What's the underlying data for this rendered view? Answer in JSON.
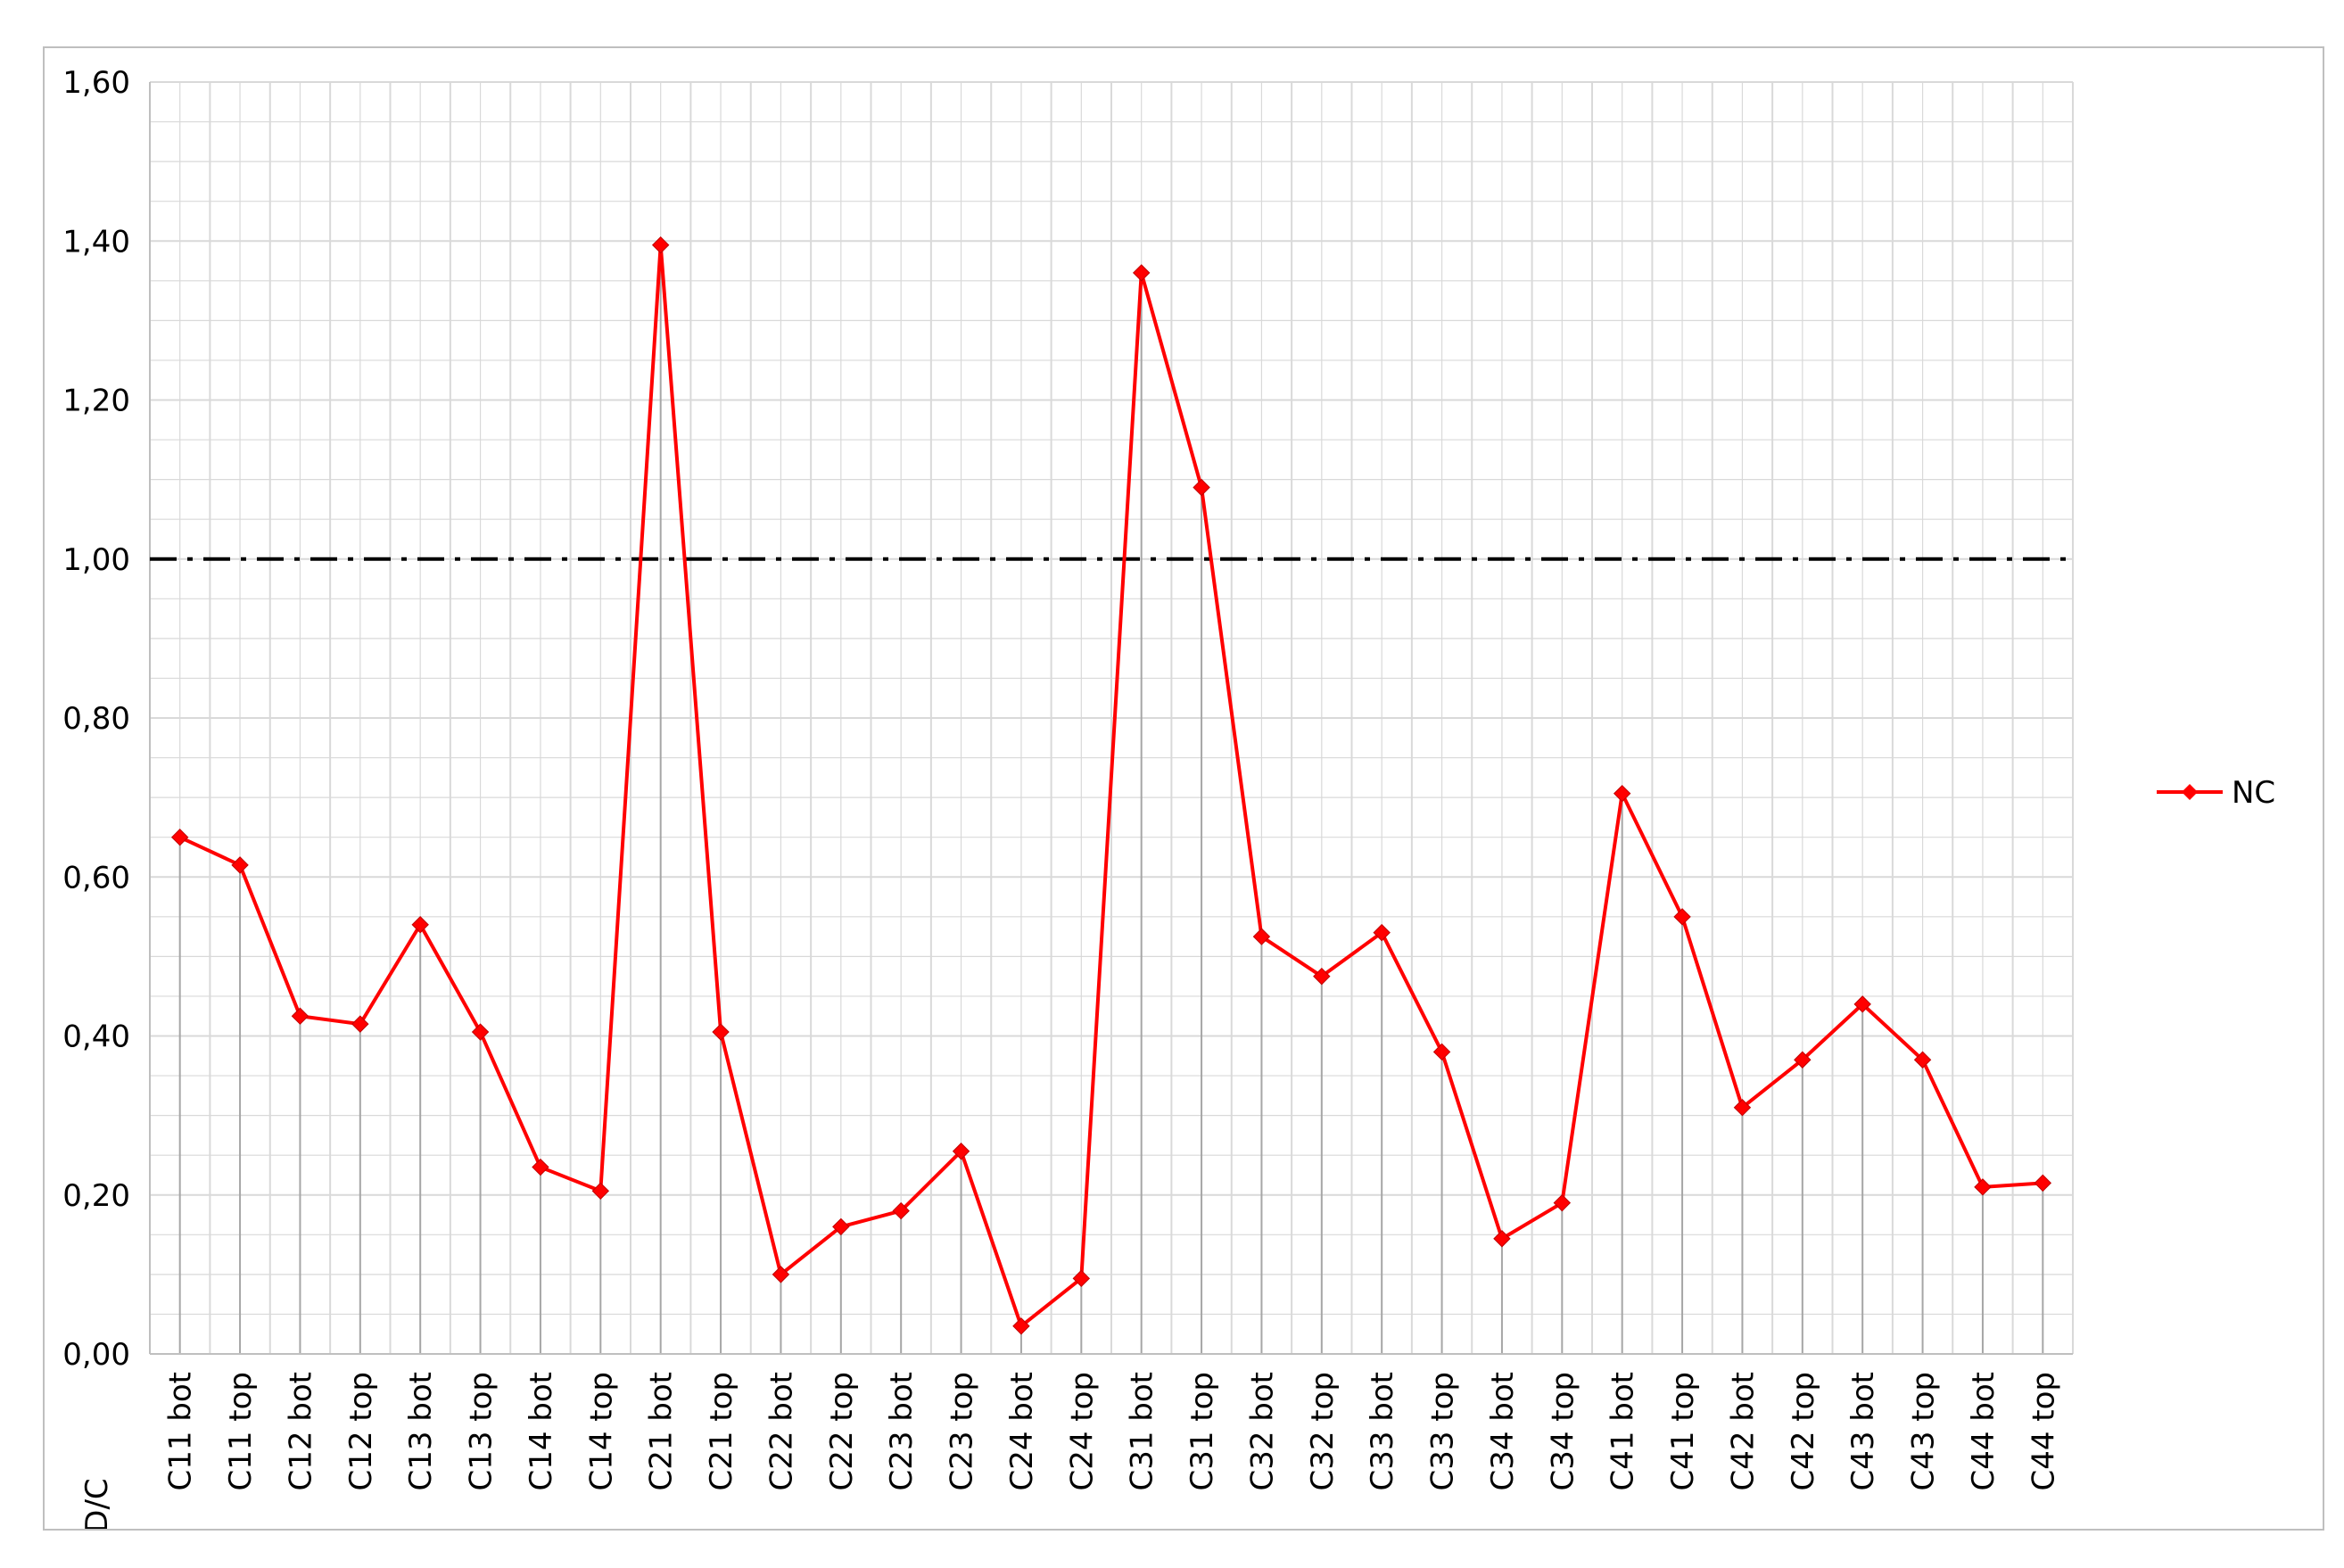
{
  "chart_data": {
    "type": "line",
    "title": "",
    "xlabel": "",
    "ylabel": "D/C",
    "ylim": [
      0,
      1.6
    ],
    "y_tick_step": 0.2,
    "y_decimal_separator": ",",
    "grid": true,
    "grid_color": "#d9d9d9",
    "legend": {
      "placement": "right",
      "entries": [
        "NC"
      ]
    },
    "categories": [
      "C11 bot",
      "C11 top",
      "C12 bot",
      "C12 top",
      "C13 bot",
      "C13 top",
      "C14 bot",
      "C14 top",
      "C21 bot",
      "C21 top",
      "C22 bot",
      "C22 top",
      "C23 bot",
      "C23 top",
      "C24 bot",
      "C24 top",
      "C31 bot",
      "C31 top",
      "C32 bot",
      "C32 top",
      "C33 bot",
      "C33 top",
      "C34 bot",
      "C34 top",
      "C41 bot",
      "C41 top",
      "C42 bot",
      "C42 top",
      "C43 bot",
      "C43 top",
      "C44 bot",
      "C44 top"
    ],
    "series": [
      {
        "name": "NC",
        "color": "#ff0000",
        "marker": "diamond",
        "drop_lines": true,
        "values": [
          0.65,
          0.615,
          0.425,
          0.415,
          0.54,
          0.405,
          0.235,
          0.205,
          1.395,
          0.405,
          0.1,
          0.16,
          0.18,
          0.255,
          0.035,
          0.095,
          1.36,
          1.09,
          0.525,
          0.475,
          0.53,
          0.38,
          0.145,
          0.19,
          0.705,
          0.55,
          0.31,
          0.37,
          0.44,
          0.37,
          0.21,
          0.215
        ]
      }
    ],
    "reference_line": {
      "y": 1.0,
      "style": "dash-dot",
      "color": "#000000"
    }
  }
}
